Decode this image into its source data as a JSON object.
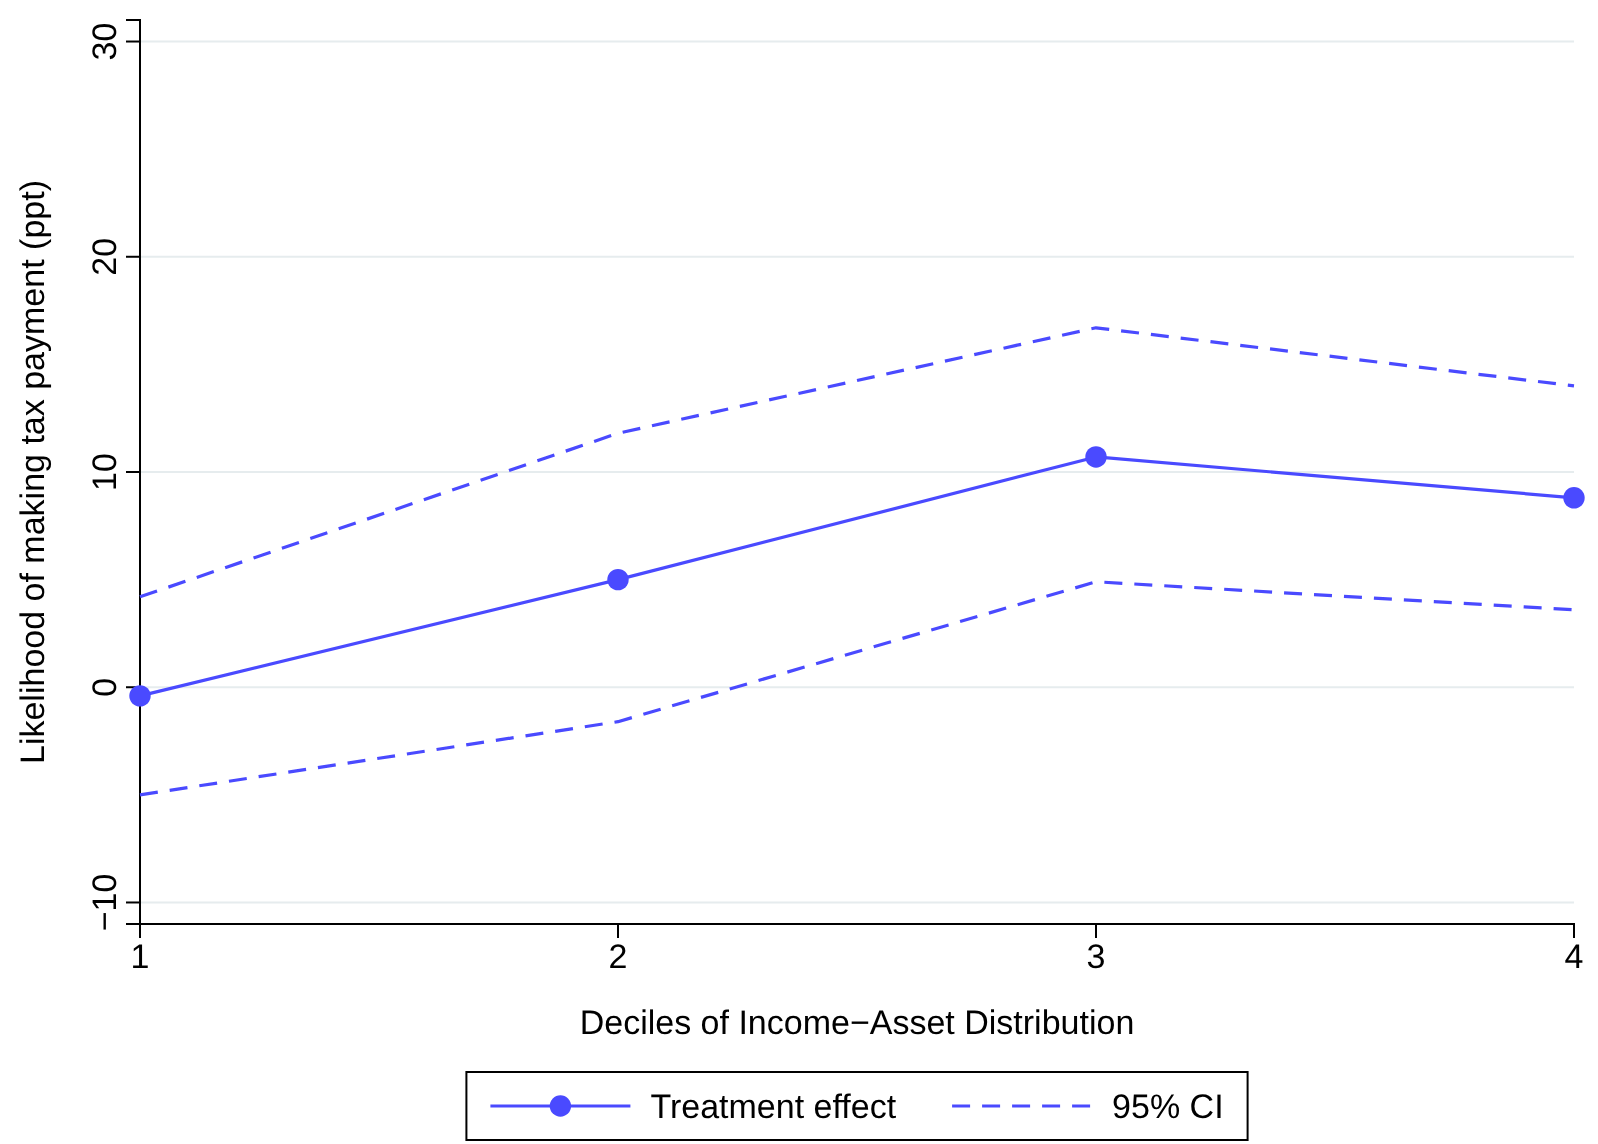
{
  "chart_data": {
    "type": "line",
    "xlabel": "Deciles of Income−Asset Distribution",
    "ylabel": "Likelihood of making tax payment (ppt)",
    "x": [
      1,
      2,
      3,
      4
    ],
    "xlim": [
      1,
      4
    ],
    "xticks": [
      1,
      2,
      3,
      4
    ],
    "ylim": [
      -11,
      31
    ],
    "yticks": [
      -10,
      0,
      10,
      20,
      30
    ],
    "grid": "y",
    "legend": "bottom",
    "series": [
      {
        "name": "Treatment effect",
        "color": "#4a4aff",
        "values": [
          -0.4,
          5.0,
          10.7,
          8.8
        ],
        "marker": "circle",
        "line_style": "solid"
      },
      {
        "name": "95% CI",
        "color": "#4a4aff",
        "values": [
          4.2,
          11.8,
          16.7,
          14.0
        ],
        "marker": "none",
        "line_style": "dashed"
      },
      {
        "color": "#4a4aff",
        "values": [
          -5.0,
          -1.6,
          4.9,
          3.6
        ],
        "marker": "none",
        "line_style": "dashed"
      }
    ]
  }
}
